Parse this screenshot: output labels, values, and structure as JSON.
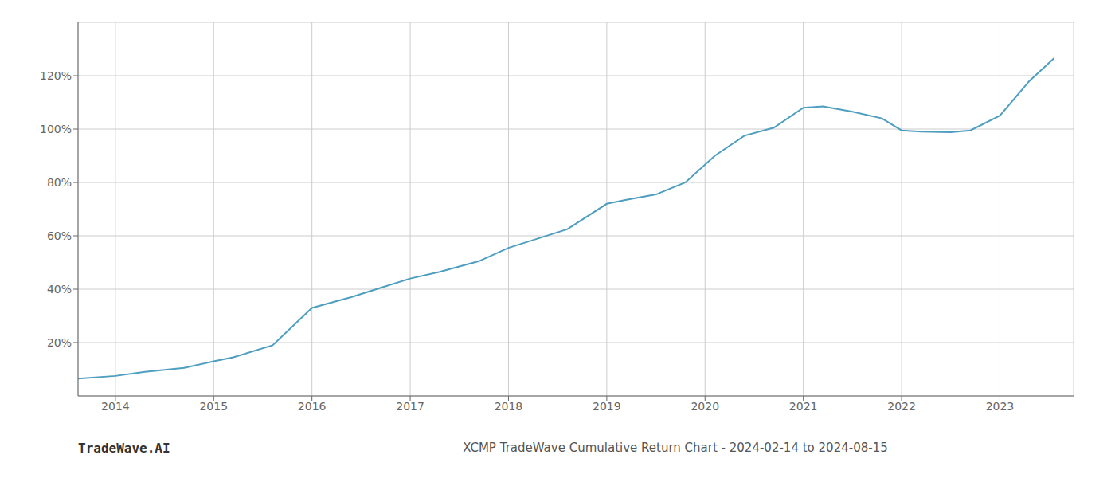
{
  "chart_data": {
    "type": "line",
    "title": "XCMP TradeWave Cumulative Return Chart - 2024-02-14 to 2024-08-15",
    "annotations": [
      "TradeWave.AI"
    ],
    "x": [
      2013.62,
      2014.0,
      2014.3,
      2014.7,
      2015.0,
      2015.2,
      2015.6,
      2016.0,
      2016.4,
      2016.7,
      2017.0,
      2017.3,
      2017.7,
      2018.0,
      2018.3,
      2018.6,
      2019.0,
      2019.2,
      2019.5,
      2019.8,
      2020.1,
      2020.4,
      2020.7,
      2021.0,
      2021.2,
      2021.5,
      2021.8,
      2022.0,
      2022.2,
      2022.5,
      2022.7,
      2023.0,
      2023.3,
      2023.55
    ],
    "values": [
      6.5,
      7.5,
      9.0,
      10.5,
      13.0,
      14.5,
      19.0,
      33.0,
      37.0,
      40.5,
      44.0,
      46.5,
      50.5,
      55.5,
      59.0,
      62.5,
      72.0,
      73.5,
      75.5,
      80.0,
      90.0,
      97.5,
      100.5,
      108.0,
      108.5,
      106.5,
      104.0,
      99.5,
      99.0,
      98.8,
      99.5,
      105.0,
      118.0,
      126.5
    ],
    "color": "#4d9ec1",
    "xlim": [
      2013.62,
      2023.75
    ],
    "ylim": [
      0,
      140
    ],
    "xticks": [
      2014,
      2015,
      2016,
      2017,
      2018,
      2019,
      2020,
      2021,
      2022,
      2023
    ],
    "yticks": [
      {
        "value": 20,
        "label": "20%"
      },
      {
        "value": 40,
        "label": "40%"
      },
      {
        "value": 60,
        "label": "60%"
      },
      {
        "value": 80,
        "label": "80%"
      },
      {
        "value": 100,
        "label": "100%"
      },
      {
        "value": 120,
        "label": "120%"
      }
    ],
    "grid": true
  }
}
